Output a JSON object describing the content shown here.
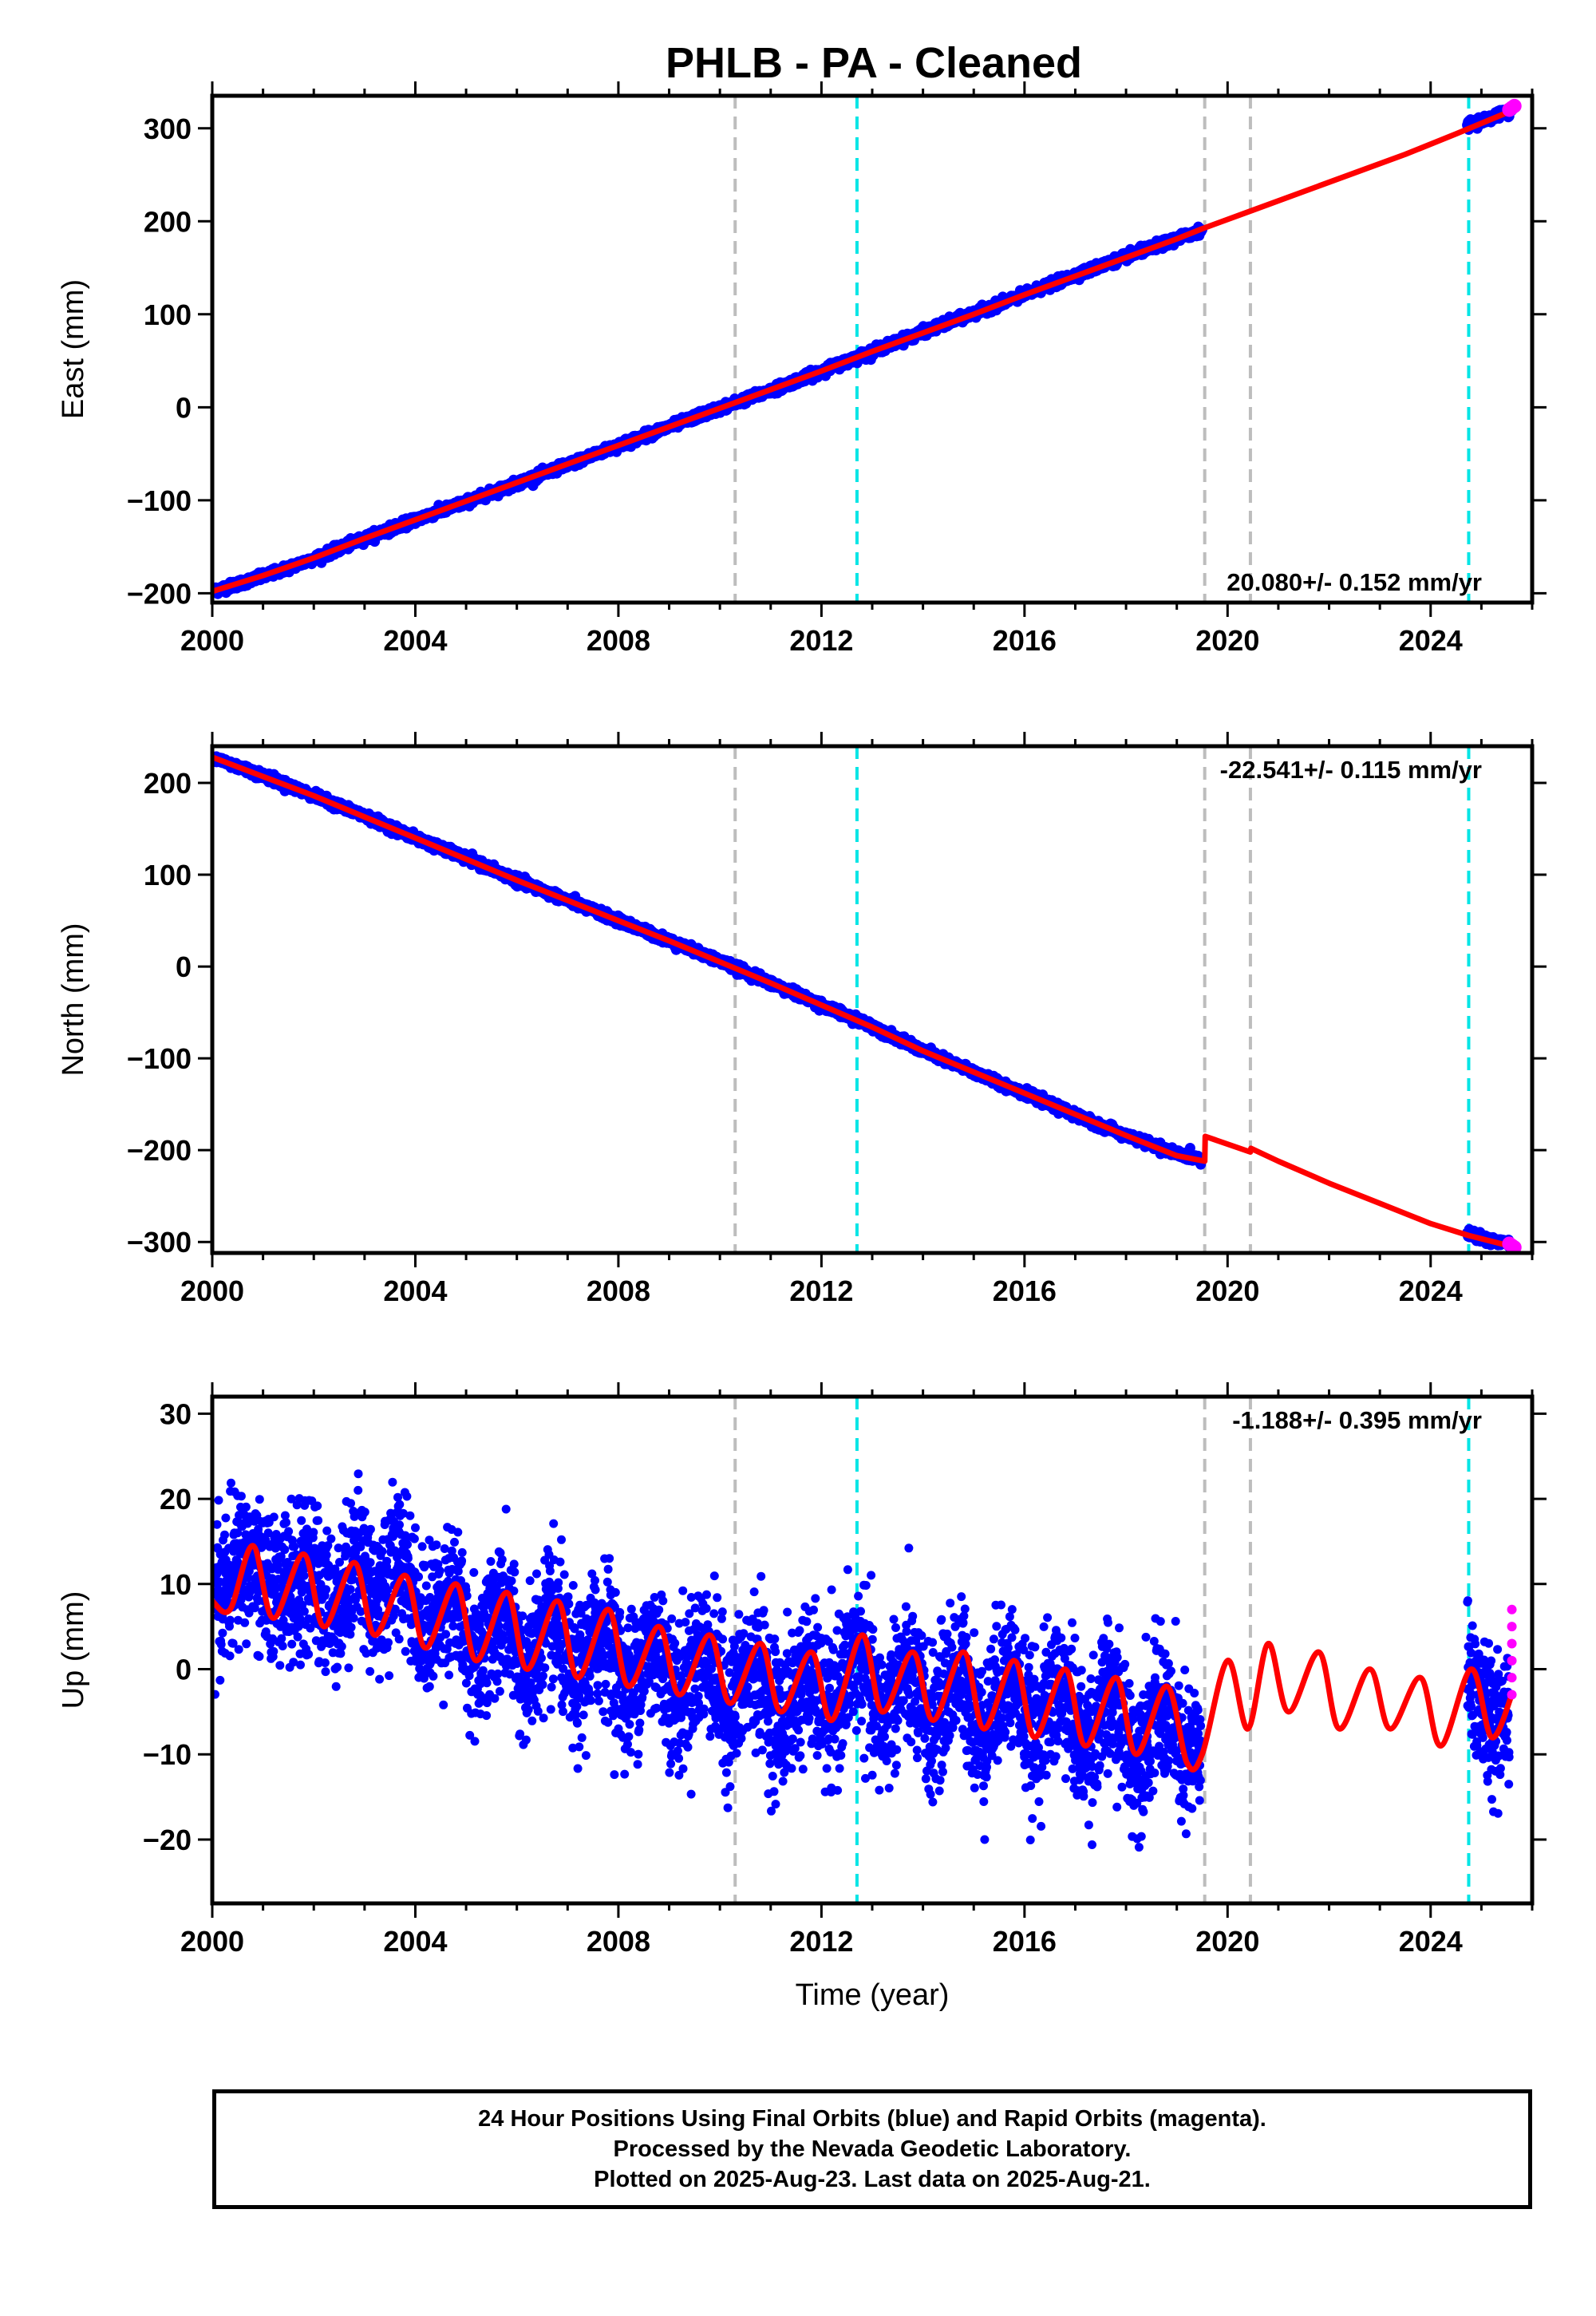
{
  "chart_data": [
    {
      "type": "scatter",
      "title": "PHLB  - PA - Cleaned",
      "ylabel": "East (mm)",
      "xlabel": "",
      "xlim": [
        2000,
        2026
      ],
      "ylim": [
        -210,
        335
      ],
      "x_ticks": [
        "2000",
        "2004",
        "2008",
        "2012",
        "2016",
        "2020",
        "2024"
      ],
      "y_ticks": [
        -200,
        -100,
        0,
        100,
        200,
        300
      ],
      "grid": false,
      "rate_label": "20.080+/- 0.152 mm/yr",
      "rate_position": "bottom-right",
      "event_lines": [
        {
          "x": 2010.3,
          "color": "#bdbdbd"
        },
        {
          "x": 2012.7,
          "color": "#00e5e5"
        },
        {
          "x": 2019.55,
          "color": "#bdbdbd"
        },
        {
          "x": 2020.45,
          "color": "#bdbdbd"
        },
        {
          "x": 2024.75,
          "color": "#00e5e5"
        }
      ],
      "series": [
        {
          "kind": "final-orbits",
          "color": "#0000ff",
          "x": [
            2000.0,
            2001,
            2002,
            2003,
            2004,
            2005,
            2006,
            2007,
            2008,
            2009,
            2010,
            2011,
            2012,
            2013,
            2014,
            2015,
            2016,
            2017,
            2018,
            2019,
            2019.5,
            2024.8,
            2025.6
          ],
          "y": [
            -198,
            -182,
            -163,
            -141,
            -121,
            -102,
            -82,
            -62,
            -41,
            -21,
            -1,
            18,
            39,
            60,
            81,
            101,
            121,
            142,
            162,
            181,
            191,
            305,
            319
          ]
        },
        {
          "kind": "rapid-orbits",
          "color": "#ff00ff",
          "x": [
            2025.55,
            2025.6,
            2025.65
          ],
          "y": [
            320,
            322,
            324
          ]
        },
        {
          "kind": "model",
          "color": "#ff0000",
          "x": [
            2000.0,
            2001,
            2002,
            2003,
            2004,
            2005,
            2006,
            2007,
            2008,
            2009,
            2010,
            2011,
            2012,
            2013,
            2014,
            2015,
            2016,
            2017,
            2018,
            2019,
            2019.5,
            2020.5,
            2021.5,
            2022.5,
            2023.5,
            2024.5,
            2025.6
          ],
          "y": [
            -198,
            -181,
            -162,
            -141,
            -121,
            -101,
            -81,
            -61,
            -41,
            -21,
            -1,
            19,
            39,
            60,
            80,
            100,
            121,
            141,
            161,
            181,
            192,
            212,
            232,
            252,
            272,
            294,
            319
          ]
        }
      ]
    },
    {
      "type": "scatter",
      "title": "",
      "ylabel": "North (mm)",
      "xlabel": "",
      "xlim": [
        2000,
        2026
      ],
      "ylim": [
        -312,
        240
      ],
      "x_ticks": [
        "2000",
        "2004",
        "2008",
        "2012",
        "2016",
        "2020",
        "2024"
      ],
      "y_ticks": [
        -300,
        -200,
        -100,
        0,
        100,
        200
      ],
      "grid": false,
      "rate_label": "-22.541+/- 0.115 mm/yr",
      "rate_position": "top-right",
      "event_lines": [
        {
          "x": 2010.3,
          "color": "#bdbdbd"
        },
        {
          "x": 2012.7,
          "color": "#00e5e5"
        },
        {
          "x": 2019.55,
          "color": "#bdbdbd"
        },
        {
          "x": 2020.45,
          "color": "#bdbdbd"
        },
        {
          "x": 2024.75,
          "color": "#00e5e5"
        }
      ],
      "series": [
        {
          "kind": "final-orbits",
          "color": "#0000ff",
          "x": [
            2000.0,
            2001,
            2002,
            2003,
            2004,
            2005,
            2006,
            2007,
            2008,
            2009,
            2010,
            2011,
            2012,
            2013,
            2014,
            2015,
            2016,
            2017,
            2018,
            2019,
            2019.5,
            2024.8,
            2025.6
          ],
          "y": [
            228,
            208,
            186,
            164,
            140,
            118,
            94,
            72,
            50,
            28,
            6,
            -18,
            -42,
            -65,
            -92,
            -115,
            -138,
            -162,
            -184,
            -204,
            -210,
            -292,
            -303
          ]
        },
        {
          "kind": "rapid-orbits",
          "color": "#ff00ff",
          "x": [
            2025.55,
            2025.6,
            2025.65
          ],
          "y": [
            -302,
            -304,
            -306
          ]
        },
        {
          "kind": "model",
          "color": "#ff0000",
          "x": [
            2000.0,
            2001,
            2002,
            2003,
            2004,
            2005,
            2006,
            2007,
            2008,
            2009,
            2010,
            2011,
            2012,
            2013,
            2014,
            2015,
            2016,
            2017,
            2018,
            2019,
            2019.55,
            2019.56,
            2020.45,
            2020.46,
            2021,
            2022,
            2023,
            2024,
            2024.75,
            2025.6
          ],
          "y": [
            228,
            207,
            186,
            163,
            140,
            117,
            94,
            72,
            50,
            28,
            5,
            -18,
            -42,
            -66,
            -92,
            -115,
            -138,
            -161,
            -184,
            -206,
            -212,
            -185,
            -202,
            -198,
            -212,
            -236,
            -258,
            -280,
            -293,
            -305
          ]
        }
      ]
    },
    {
      "type": "scatter",
      "title": "",
      "ylabel": "Up (mm)",
      "xlabel": "Time (year)",
      "xlim": [
        2000,
        2026
      ],
      "ylim": [
        -27.5,
        32
      ],
      "x_ticks": [
        "2000",
        "2004",
        "2008",
        "2012",
        "2016",
        "2020",
        "2024"
      ],
      "y_ticks": [
        -20,
        -10,
        0,
        10,
        20,
        30
      ],
      "grid": false,
      "rate_label": "-1.188+/- 0.395 mm/yr",
      "rate_position": "top-right",
      "event_lines": [
        {
          "x": 2010.3,
          "color": "#bdbdbd"
        },
        {
          "x": 2012.7,
          "color": "#00e5e5"
        },
        {
          "x": 2019.55,
          "color": "#bdbdbd"
        },
        {
          "x": 2020.45,
          "color": "#bdbdbd"
        },
        {
          "x": 2024.75,
          "color": "#00e5e5"
        }
      ],
      "series": [
        {
          "kind": "final-orbits",
          "color": "#0000ff",
          "x": [
            2000.1,
            2000.5,
            2000.9,
            2001.3,
            2001.7,
            2002.1,
            2002.5,
            2002.9,
            2003.3,
            2003.7,
            2004.1,
            2004.6,
            2005.1,
            2005.6,
            2006.1,
            2006.6,
            2007.1,
            2007.6,
            2008.1,
            2008.6,
            2009.1,
            2009.6,
            2010.1,
            2010.6,
            2011.1,
            2011.6,
            2012.1,
            2012.6,
            2013.1,
            2013.6,
            2014.1,
            2014.6,
            2015.1,
            2015.6,
            2016.1,
            2016.6,
            2017.1,
            2017.6,
            2018.1,
            2018.6,
            2019.1,
            2019.4,
            2024.8,
            2025.1,
            2025.4
          ],
          "y": [
            10,
            16,
            8,
            15,
            5,
            14,
            6,
            16,
            12,
            18,
            6,
            10,
            0,
            6,
            -3,
            5,
            -4,
            4,
            -5,
            3,
            -6,
            2,
            -8,
            0,
            -9,
            -3,
            -7,
            2,
            -9,
            -1,
            -10,
            0,
            -10,
            1,
            -9,
            -2,
            -11,
            -4,
            -12,
            -5,
            -13,
            -8,
            -2,
            -5,
            -4
          ]
        },
        {
          "kind": "rapid-orbits",
          "color": "#ff00ff",
          "x": [
            2025.6,
            2025.6,
            2025.6,
            2025.6,
            2025.6,
            2025.6
          ],
          "y": [
            7,
            5,
            3,
            1,
            -1,
            -3
          ]
        },
        {
          "kind": "model",
          "color": "#ff0000",
          "x": [
            2000.0,
            2000.35,
            2000.8,
            2001.2,
            2001.8,
            2002.2,
            2002.8,
            2003.2,
            2003.8,
            2004.2,
            2004.8,
            2005.2,
            2005.8,
            2006.2,
            2006.8,
            2007.2,
            2007.8,
            2008.2,
            2008.8,
            2009.2,
            2009.8,
            2010.2,
            2010.8,
            2011.2,
            2011.8,
            2012.2,
            2012.8,
            2013.2,
            2013.8,
            2014.2,
            2014.8,
            2015.2,
            2015.8,
            2016.2,
            2016.8,
            2017.2,
            2017.8,
            2018.2,
            2018.8,
            2019.2,
            2019.5,
            2020.0,
            2020.4,
            2020.8,
            2021.2,
            2021.8,
            2022.2,
            2022.8,
            2023.2,
            2023.8,
            2024.2,
            2024.8,
            2025.2,
            2025.6
          ],
          "y": [
            8,
            7,
            14.5,
            6,
            13.5,
            5,
            12.5,
            4,
            11,
            2.5,
            10,
            1,
            9,
            0,
            8,
            -1,
            7,
            -2,
            5,
            -3,
            4,
            -4,
            3,
            -5,
            2,
            -6,
            4,
            -5,
            2,
            -6,
            2,
            -7,
            1,
            -8,
            0,
            -9,
            -1,
            -10,
            -2,
            -11,
            -10,
            1,
            -7,
            3,
            -5,
            2,
            -7,
            0,
            -7,
            -1,
            -9,
            0,
            -8,
            -3
          ]
        }
      ]
    }
  ],
  "footer": {
    "line1": "24 Hour Positions Using Final Orbits (blue) and Rapid Orbits (magenta).",
    "line2": "Processed by the Nevada Geodetic Laboratory.",
    "line3": "Plotted on 2025-Aug-23. Last data on 2025-Aug-21."
  }
}
